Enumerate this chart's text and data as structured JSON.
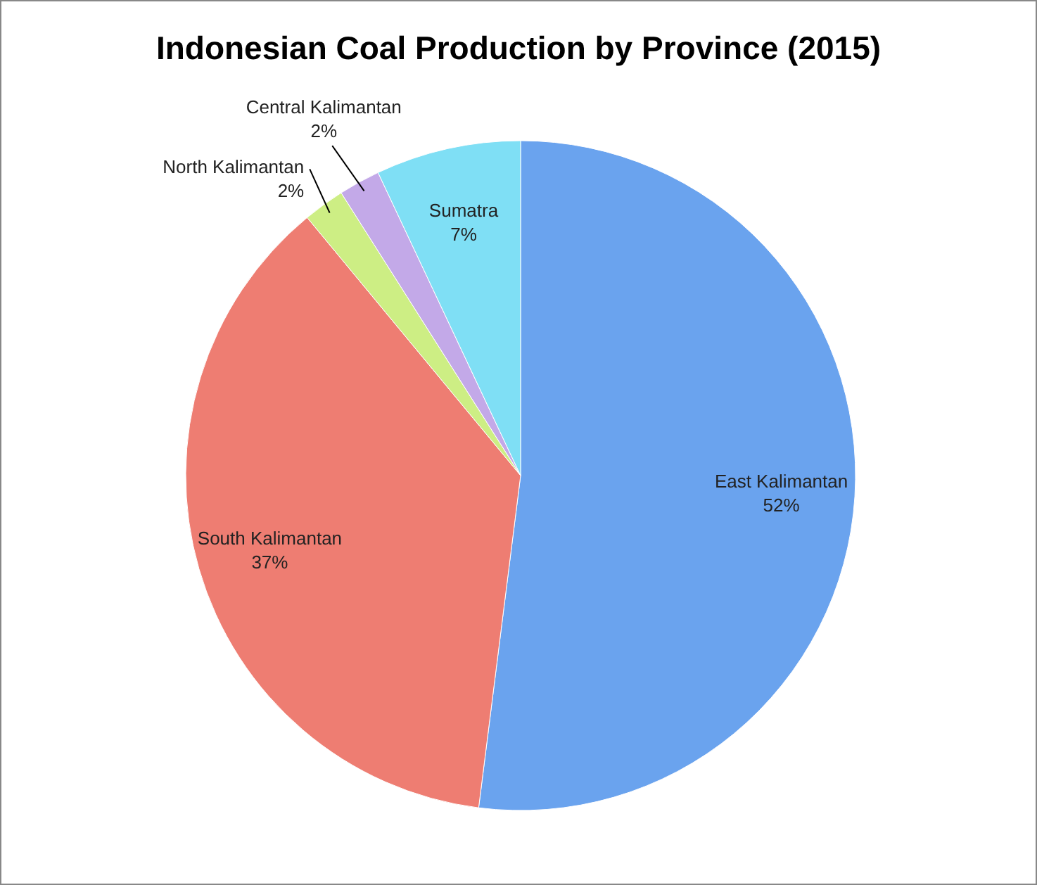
{
  "chart_data": {
    "type": "pie",
    "title": "Indonesian Coal Production by Province (2015)",
    "categories": [
      "East Kalimantan",
      "South Kalimantan",
      "North Kalimantan",
      "Central Kalimantan",
      "Sumatra"
    ],
    "values": [
      52,
      37,
      2,
      2,
      7
    ],
    "value_labels": [
      "52%",
      "37%",
      "2%",
      "2%",
      "7%"
    ],
    "colors": [
      "#6aa3ee",
      "#ee7d72",
      "#cdee84",
      "#c3a9e8",
      "#7fdff5"
    ]
  }
}
